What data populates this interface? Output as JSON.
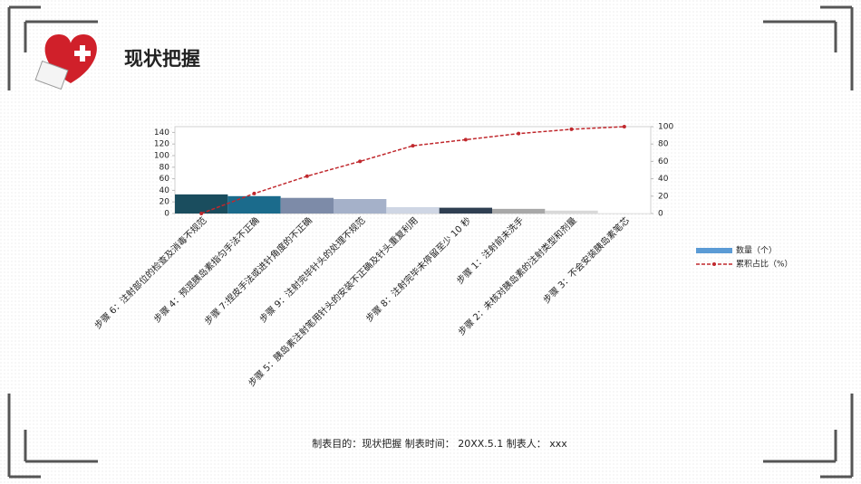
{
  "slide": {
    "title": "现状把握",
    "footer": "制表目的：现状把握   制表时间： 20XX.5.1   制表人： xxx"
  },
  "chart_data": {
    "type": "bar",
    "categories": [
      "步骤 6：注射部位的检查及消毒不规范",
      "步骤 4：预混胰岛素指匀手法不正确",
      "步骤 7:捏皮手法或进针角度的不正确",
      "步骤 9：注射完毕针头的处理不规范",
      "步骤 5：胰岛素注射笔用针头的安装不正确及针头重复利用",
      "步骤 8：注射完毕未停留至少 10 秒",
      "步骤 1：注射前未洗手",
      "步骤 2：未核对胰岛素的注射类型和剂量",
      "步骤 3：不会安装胰岛素笔芯"
    ],
    "series": [
      {
        "name": "数量（个）",
        "color": "#5b9bd5",
        "colors": [
          "#1a4d5e",
          "#1b6b8c",
          "#7d8ba8",
          "#a5b1c9",
          "#cfd6e4",
          "#2f3f52",
          "#a8a8a8",
          "#d9d9d9",
          "#efefef"
        ],
        "values": [
          33,
          30,
          27,
          25,
          11,
          10,
          8,
          5,
          1
        ]
      },
      {
        "name": "累积占比（%）",
        "type": "line",
        "axis": "y2",
        "color": "#c0282d",
        "values": [
          0,
          23,
          43,
          60,
          78,
          85,
          92,
          97,
          100
        ]
      }
    ],
    "ylim": [
      0,
      150
    ],
    "yticks": [
      0,
      20,
      40,
      60,
      80,
      100,
      120,
      140
    ],
    "y2lim": [
      0,
      100
    ],
    "y2ticks": [
      0,
      20,
      40,
      60,
      80,
      100
    ],
    "grid": false,
    "legend": "right"
  }
}
